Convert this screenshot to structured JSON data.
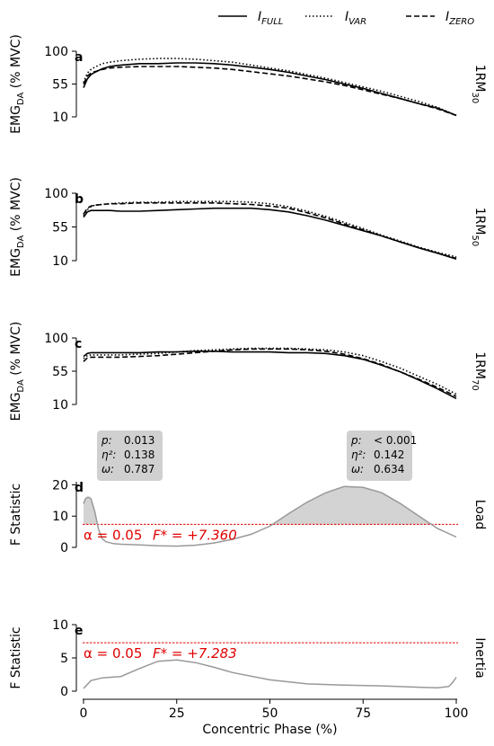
{
  "legend": {
    "entries": [
      {
        "base": "I",
        "sub": "FULL",
        "style": "solid"
      },
      {
        "base": "I",
        "sub": "VAR",
        "style": "dotted"
      },
      {
        "base": "I",
        "sub": "ZERO",
        "style": "dashed"
      }
    ],
    "placement": "top"
  },
  "shared_x": {
    "label": "Concentric Phase (%)",
    "ticks": [
      "0",
      "25",
      "50",
      "75",
      "100"
    ],
    "lim": [
      0,
      100
    ]
  },
  "emg_ylabel": {
    "main": "EMG",
    "sub": "DA",
    "rest": " (% MVC)"
  },
  "f_ylabel": "F Statistic",
  "colors": {
    "curve": "#000000",
    "spm": "#999999",
    "fill": "#d3d3d3",
    "threshold": "#e00000",
    "box": "#d0d0d0"
  },
  "chart_data": [
    {
      "panel": "a",
      "type": "line",
      "side_label": {
        "base": "1RM",
        "sub": "30"
      },
      "ylim": [
        10,
        100
      ],
      "yticks": [
        "10",
        "55",
        "100"
      ],
      "x": [
        0,
        1,
        2,
        3,
        5,
        7,
        10,
        15,
        20,
        25,
        30,
        35,
        40,
        45,
        50,
        55,
        60,
        65,
        70,
        75,
        80,
        85,
        90,
        95,
        100
      ],
      "series": [
        {
          "name": "FULL",
          "values": [
            50,
            62,
            68,
            71,
            76,
            79,
            81,
            83,
            83,
            84,
            84,
            83,
            81,
            78,
            75,
            71,
            66,
            61,
            55,
            49,
            42,
            35,
            28,
            22,
            12
          ]
        },
        {
          "name": "VAR",
          "values": [
            57,
            70,
            75,
            78,
            83,
            85,
            87,
            89,
            90,
            90,
            89,
            87,
            85,
            81,
            77,
            73,
            68,
            63,
            57,
            51,
            45,
            38,
            31,
            23,
            12
          ]
        },
        {
          "name": "ZERO",
          "values": [
            55,
            66,
            70,
            72,
            75,
            77,
            78,
            79,
            79,
            79,
            78,
            77,
            75,
            72,
            69,
            66,
            62,
            58,
            53,
            47,
            41,
            35,
            28,
            21,
            12
          ]
        }
      ]
    },
    {
      "panel": "b",
      "type": "line",
      "side_label": {
        "base": "1RM",
        "sub": "50"
      },
      "ylim": [
        10,
        100
      ],
      "yticks": [
        "10",
        "55",
        "100"
      ],
      "x": [
        0,
        1,
        2,
        3,
        5,
        7,
        10,
        15,
        20,
        25,
        30,
        35,
        40,
        45,
        50,
        55,
        60,
        65,
        70,
        75,
        80,
        85,
        90,
        95,
        100
      ],
      "series": [
        {
          "name": "FULL",
          "values": [
            68,
            75,
            77,
            77,
            77,
            77,
            76,
            76,
            77,
            78,
            79,
            80,
            80,
            80,
            78,
            75,
            70,
            64,
            57,
            50,
            43,
            35,
            27,
            20,
            12
          ]
        },
        {
          "name": "VAR",
          "values": [
            70,
            78,
            82,
            84,
            85,
            86,
            87,
            88,
            88,
            89,
            89,
            89,
            89,
            88,
            86,
            82,
            76,
            69,
            61,
            53,
            44,
            36,
            28,
            21,
            15
          ]
        },
        {
          "name": "ZERO",
          "values": [
            72,
            80,
            83,
            84,
            85,
            86,
            86,
            87,
            87,
            87,
            87,
            87,
            86,
            85,
            83,
            80,
            74,
            67,
            59,
            51,
            43,
            35,
            27,
            20,
            13
          ]
        }
      ]
    },
    {
      "panel": "c",
      "type": "line",
      "side_label": {
        "base": "1RM",
        "sub": "70"
      },
      "ylim": [
        10,
        100
      ],
      "yticks": [
        "10",
        "55",
        "100"
      ],
      "x": [
        0,
        1,
        2,
        3,
        5,
        7,
        10,
        15,
        20,
        25,
        30,
        35,
        40,
        45,
        50,
        55,
        60,
        65,
        70,
        75,
        80,
        85,
        90,
        95,
        100
      ],
      "series": [
        {
          "name": "FULL",
          "values": [
            75,
            79,
            80,
            80,
            80,
            80,
            80,
            80,
            81,
            81,
            82,
            82,
            81,
            81,
            81,
            80,
            80,
            79,
            76,
            71,
            63,
            54,
            43,
            31,
            18
          ]
        },
        {
          "name": "VAR",
          "values": [
            72,
            76,
            77,
            77,
            77,
            77,
            77,
            78,
            79,
            81,
            83,
            84,
            85,
            86,
            86,
            86,
            85,
            84,
            81,
            76,
            68,
            59,
            48,
            37,
            24
          ]
        },
        {
          "name": "ZERO",
          "values": [
            68,
            73,
            74,
            74,
            74,
            74,
            74,
            75,
            76,
            78,
            80,
            82,
            84,
            85,
            85,
            85,
            84,
            82,
            78,
            72,
            64,
            54,
            44,
            33,
            21
          ]
        }
      ]
    },
    {
      "panel": "d",
      "type": "area",
      "side_label": {
        "base": "Load",
        "sub": ""
      },
      "ylim": [
        0,
        21
      ],
      "yticks": [
        "0",
        "10",
        "20"
      ],
      "alpha_text": "α = 0.05",
      "fstar_text": "F* = +7.360",
      "threshold": 7.36,
      "x": [
        0,
        0.5,
        1,
        1.5,
        2,
        3,
        4,
        5,
        6,
        8,
        10,
        15,
        20,
        25,
        30,
        35,
        40,
        45,
        50,
        55,
        60,
        65,
        70,
        75,
        80,
        85,
        90,
        95,
        100
      ],
      "values": [
        14,
        15.5,
        16,
        16,
        15.5,
        11.5,
        5.8,
        2.8,
        1.8,
        1.2,
        1.0,
        0.8,
        0.5,
        0.4,
        0.7,
        1.4,
        2.6,
        4.2,
        6.8,
        10.8,
        14.5,
        17.5,
        19.5,
        19.2,
        17.5,
        14,
        10,
        6,
        3.3
      ],
      "clusters": [
        {
          "stats": [
            {
              "k": "p",
              "v": "0.013"
            },
            {
              "k": "η²",
              "v": "0.138"
            },
            {
              "k": "ω",
              "v": "0.787"
            }
          ]
        },
        {
          "stats": [
            {
              "k": "p",
              "v": "< 0.001"
            },
            {
              "k": "η²",
              "v": "0.142"
            },
            {
              "k": "ω",
              "v": "0.634"
            }
          ]
        }
      ]
    },
    {
      "panel": "e",
      "type": "line",
      "side_label": {
        "base": "Inertia",
        "sub": ""
      },
      "ylim": [
        0,
        10
      ],
      "yticks": [
        "0",
        "5",
        "10"
      ],
      "alpha_text": "α = 0.05",
      "fstar_text": "F* = +7.283",
      "threshold": 7.283,
      "x": [
        0,
        2,
        5,
        10,
        15,
        20,
        25,
        30,
        35,
        40,
        50,
        60,
        70,
        80,
        90,
        95,
        98,
        99,
        100
      ],
      "values": [
        0.4,
        1.6,
        2.0,
        2.2,
        3.4,
        4.5,
        4.7,
        4.3,
        3.6,
        2.8,
        1.7,
        1.1,
        0.9,
        0.8,
        0.6,
        0.5,
        0.7,
        1.3,
        2.1
      ]
    }
  ]
}
